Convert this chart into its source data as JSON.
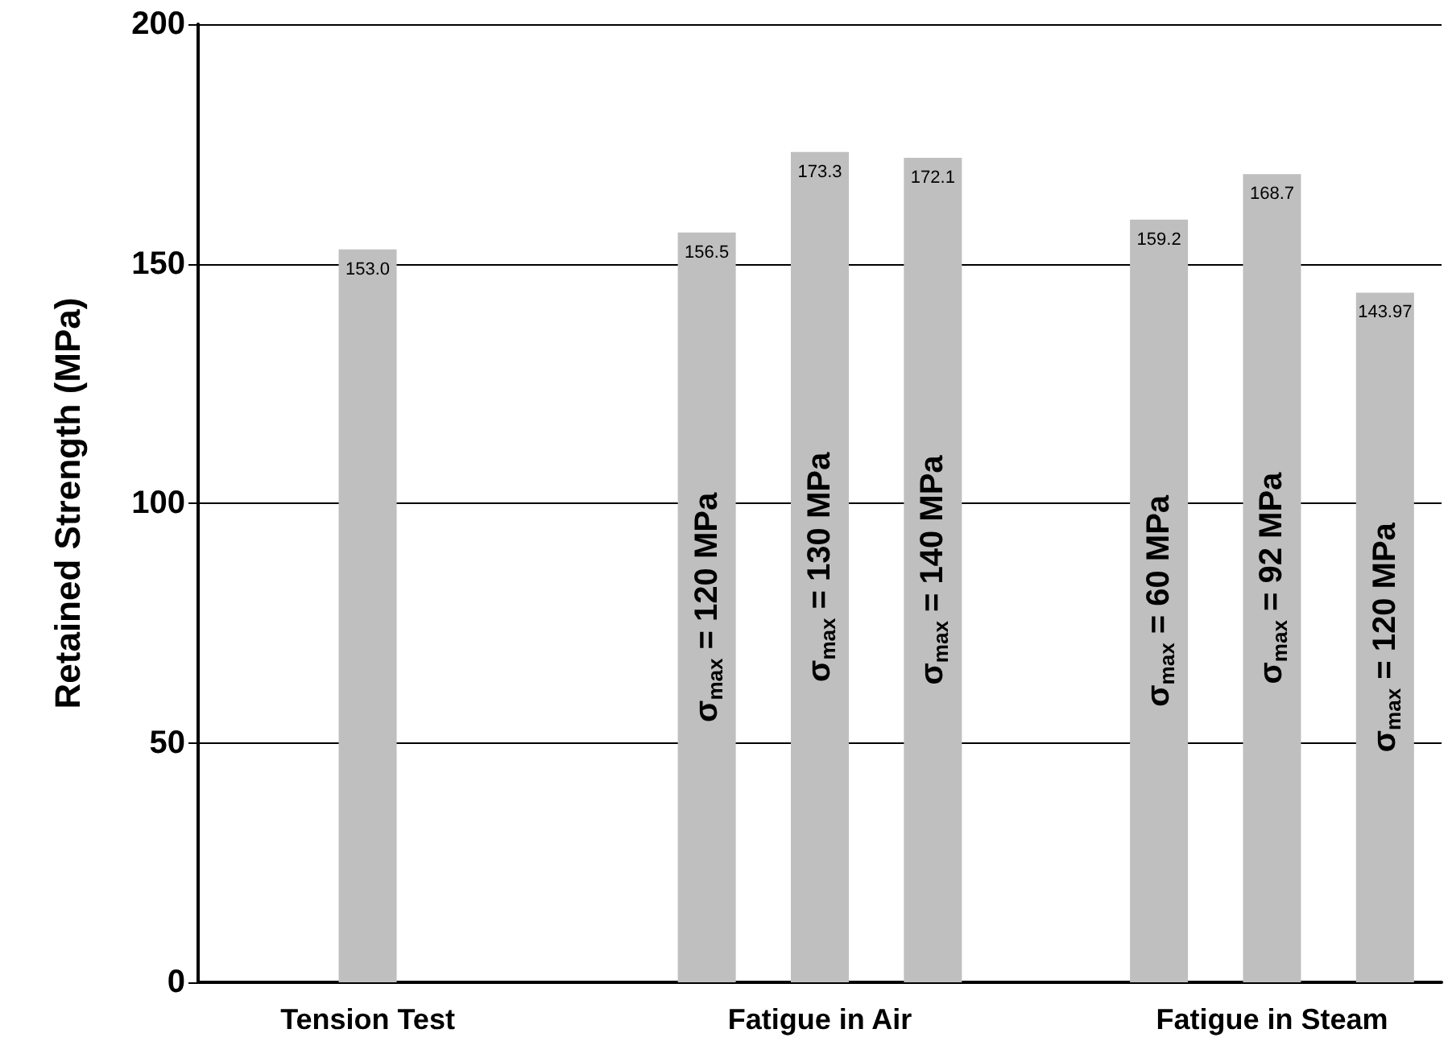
{
  "chart_data": {
    "type": "bar",
    "ylabel": "Retained Strength (MPa)",
    "categories": [
      null,
      "Tension Test",
      null,
      null,
      null,
      "Fatigue in Air",
      null,
      null,
      null,
      "Fatigue in Steam",
      null
    ],
    "values": [
      null,
      153.0,
      null,
      null,
      156.5,
      173.3,
      172.1,
      null,
      159.2,
      168.7,
      143.97
    ],
    "value_labels": [
      null,
      "153.0",
      null,
      null,
      "156.5",
      "173.3",
      "172.1",
      null,
      "159.2",
      "168.7",
      "143.97"
    ],
    "data_labels": true,
    "color": "#bfbfbf",
    "ylim": [
      0,
      200
    ],
    "yticks": [
      0,
      50,
      100,
      150,
      200
    ],
    "grid": "y",
    "annotations": [
      "σ$_{max}$ = 120 MPa",
      "σ$_{max}$ = 130 MPa",
      "σ$_{max}$ = 140 MPa",
      "σ$_{max}$ = 60 MPa",
      "σ$_{max}$ = 92 MPa",
      "σ$_{max}$ = 120 MPa"
    ]
  }
}
